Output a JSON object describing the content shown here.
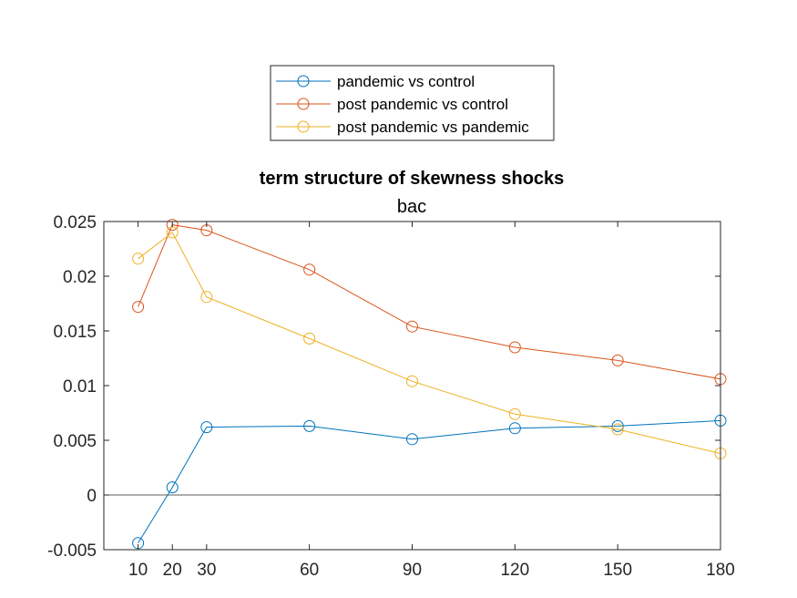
{
  "chart_data": {
    "type": "line",
    "title": "term structure of skewness shocks",
    "subtitle": "bac",
    "xlabel": "",
    "ylabel": "",
    "x": [
      10,
      20,
      30,
      60,
      90,
      120,
      150,
      180
    ],
    "xlim": [
      0,
      180
    ],
    "ylim": [
      -0.005,
      0.025
    ],
    "xticks": [
      "10",
      "20",
      "30",
      "60",
      "90",
      "120",
      "150",
      "180"
    ],
    "yticks": [
      "-0.005",
      "0",
      "0.005",
      "0.01",
      "0.015",
      "0.02",
      "0.025"
    ],
    "ytick_values": [
      -0.005,
      0,
      0.005,
      0.01,
      0.015,
      0.02,
      0.025
    ],
    "zero_line": true,
    "grid": false,
    "legend_position": "top-center",
    "series": [
      {
        "name": "pandemic vs control",
        "color": "#0072BD",
        "values": [
          -0.0044,
          0.0007,
          0.0062,
          0.0063,
          0.0051,
          0.0061,
          0.0063,
          0.0068
        ]
      },
      {
        "name": "post pandemic vs control",
        "color": "#D95319",
        "values": [
          0.0172,
          0.0247,
          0.0242,
          0.0206,
          0.0154,
          0.0135,
          0.0123,
          0.0106
        ]
      },
      {
        "name": "post pandemic vs pandemic",
        "color": "#EDB120",
        "values": [
          0.0216,
          0.024,
          0.0181,
          0.0143,
          0.0104,
          0.0074,
          0.006,
          0.0038
        ]
      }
    ]
  }
}
